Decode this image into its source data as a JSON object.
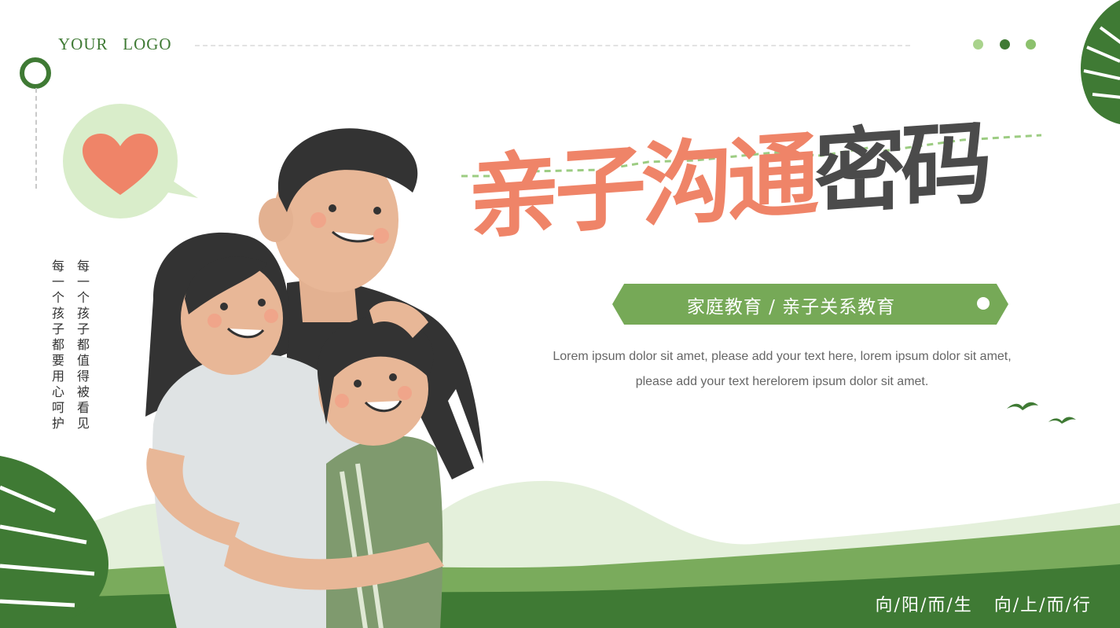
{
  "logo": {
    "text": "YOUR   LOGO"
  },
  "title": {
    "part1": "亲子沟通",
    "part2": "密码"
  },
  "subtitle": "家庭教育 / 亲子关系教育",
  "description": {
    "line1": "Lorem ipsum dolor sit amet, please add your text here, lorem ipsum dolor sit amet,",
    "line2": "please add your text herelorem ipsum dolor sit amet."
  },
  "side_text": {
    "col1": "每一个孩子都值得被看见",
    "col2": "每一个孩子都要用心呵护"
  },
  "motto": "向/阳/而/生   向/上/而/行",
  "colors": {
    "accent_green": "#3f7a34",
    "light_green": "#76a957",
    "coral": "#ef8468",
    "dark": "#4b4b4b"
  },
  "icons": [
    "heart-icon",
    "speech-bubble-icon",
    "monstera-leaf-icon",
    "bird-icon",
    "ring-icon"
  ]
}
